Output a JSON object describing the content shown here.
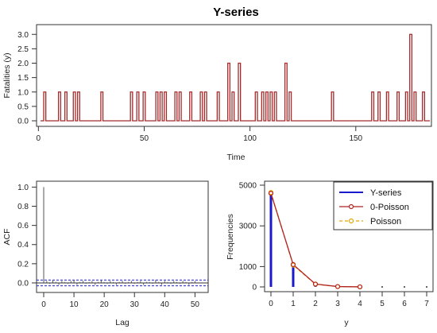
{
  "chart_data": [
    {
      "type": "line",
      "title": "Y-series",
      "xlabel": "Time",
      "ylabel": "Fatalities (y)",
      "xlim": [
        1,
        185
      ],
      "ylim": [
        0,
        3.2
      ],
      "x_ticks": [
        "0",
        "50",
        "100",
        "150"
      ],
      "y_ticks": [
        "0.0",
        "0.5",
        "1.0",
        "1.5",
        "2.0",
        "2.5",
        "3.0"
      ],
      "step": true,
      "color": "#a52a2a",
      "events": [
        {
          "x": 3,
          "y": 1
        },
        {
          "x": 10,
          "y": 1
        },
        {
          "x": 13,
          "y": 1
        },
        {
          "x": 17,
          "y": 1
        },
        {
          "x": 19,
          "y": 1
        },
        {
          "x": 30,
          "y": 1
        },
        {
          "x": 44,
          "y": 1
        },
        {
          "x": 47,
          "y": 1
        },
        {
          "x": 50,
          "y": 1
        },
        {
          "x": 56,
          "y": 1
        },
        {
          "x": 58,
          "y": 1
        },
        {
          "x": 60,
          "y": 1
        },
        {
          "x": 65,
          "y": 1
        },
        {
          "x": 67,
          "y": 1
        },
        {
          "x": 72,
          "y": 1
        },
        {
          "x": 77,
          "y": 1
        },
        {
          "x": 79,
          "y": 1
        },
        {
          "x": 85,
          "y": 1
        },
        {
          "x": 90,
          "y": 2
        },
        {
          "x": 92,
          "y": 1
        },
        {
          "x": 95,
          "y": 2
        },
        {
          "x": 103,
          "y": 1
        },
        {
          "x": 106,
          "y": 1
        },
        {
          "x": 108,
          "y": 1
        },
        {
          "x": 110,
          "y": 1
        },
        {
          "x": 112,
          "y": 1
        },
        {
          "x": 117,
          "y": 2
        },
        {
          "x": 119,
          "y": 1
        },
        {
          "x": 139,
          "y": 1
        },
        {
          "x": 158,
          "y": 1
        },
        {
          "x": 161,
          "y": 1
        },
        {
          "x": 165,
          "y": 1
        },
        {
          "x": 170,
          "y": 1
        },
        {
          "x": 174,
          "y": 1
        },
        {
          "x": 176,
          "y": 3
        },
        {
          "x": 178,
          "y": 1
        },
        {
          "x": 182,
          "y": 1
        }
      ]
    },
    {
      "type": "bar",
      "xlabel": "Lag",
      "ylabel": "ACF",
      "xlim": [
        0,
        52
      ],
      "ylim": [
        -0.05,
        1.02
      ],
      "x_ticks": [
        "0",
        "10",
        "20",
        "30",
        "40",
        "50"
      ],
      "y_ticks": [
        "0.0",
        "0.2",
        "0.4",
        "0.6",
        "0.8",
        "1.0"
      ],
      "lags": [
        0,
        1,
        2,
        3,
        4,
        5,
        6,
        7,
        8,
        9,
        10,
        11,
        12,
        13,
        14,
        15,
        16,
        17,
        18,
        19,
        20,
        21,
        22,
        23,
        24,
        25,
        26,
        27,
        28,
        29,
        30,
        31,
        32,
        33,
        34,
        35,
        36,
        37,
        38,
        39,
        40,
        41,
        42,
        43,
        44,
        45,
        46,
        47,
        48,
        49,
        50
      ],
      "values": [
        1.0,
        0.02,
        -0.01,
        0.03,
        0.01,
        -0.02,
        0.02,
        0.01,
        -0.01,
        0.02,
        0.03,
        -0.02,
        0.01,
        0.02,
        -0.01,
        0.01,
        0.02,
        -0.02,
        0.01,
        0.03,
        0.01,
        -0.01,
        0.02,
        0.01,
        -0.02,
        0.01,
        0.02,
        -0.01,
        0.01,
        0.02,
        -0.01,
        0.01,
        0.02,
        -0.02,
        0.01,
        0.01,
        -0.01,
        0.03,
        0.01,
        -0.02,
        0.02,
        0.01,
        -0.01,
        0.02,
        0.01,
        -0.01,
        0.02,
        0.01,
        -0.02,
        0.01,
        0.02
      ],
      "confidence_bound": 0.03,
      "zero_line_color": "#2222cc"
    },
    {
      "type": "line",
      "xlabel": "y",
      "ylabel": "Frequencies",
      "xlim": [
        0,
        7
      ],
      "ylim": [
        0,
        5000
      ],
      "x_ticks": [
        "0",
        "1",
        "2",
        "3",
        "4",
        "5",
        "6",
        "7"
      ],
      "y_ticks": [
        "0",
        "1000",
        "3000",
        "5000"
      ],
      "categories": [
        0,
        1,
        2,
        3,
        4,
        5,
        6,
        7
      ],
      "series": [
        {
          "name": "Y-series",
          "style": "spikes",
          "color": "#1a1acc",
          "values": [
            4550,
            1080,
            120,
            15,
            2,
            0,
            0,
            0
          ]
        },
        {
          "name": "0-Poisson",
          "style": "line-circle",
          "color": "#b22222",
          "values": [
            4600,
            1100,
            140,
            18,
            3,
            0,
            0,
            0
          ]
        },
        {
          "name": "Poisson",
          "style": "dashed-circle",
          "color": "#e6a800",
          "values": [
            4640,
            1070,
            130,
            16,
            2,
            0,
            0,
            0
          ]
        }
      ],
      "legend": "top-right"
    }
  ]
}
